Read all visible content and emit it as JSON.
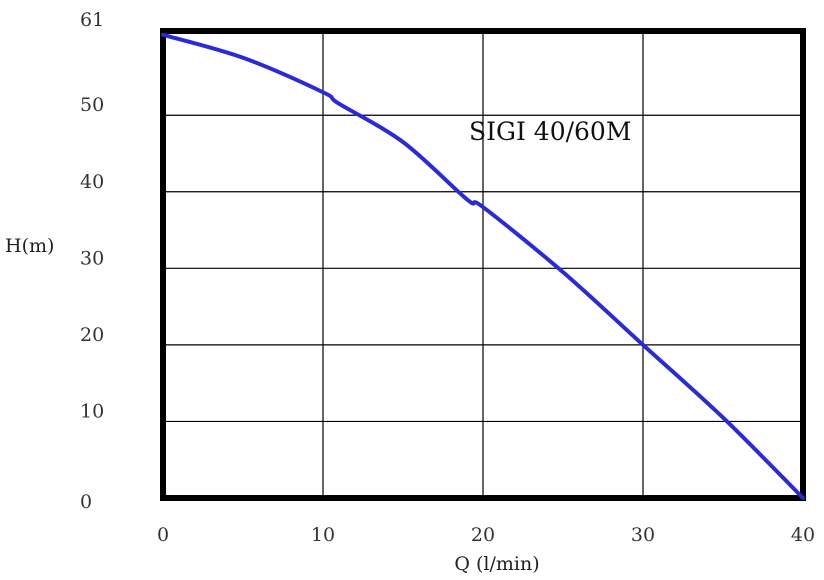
{
  "chart_data": {
    "type": "line",
    "title": "SIGI 40/60M",
    "xlabel": "Q (l/min)",
    "ylabel": "H(m)",
    "xlim": [
      0,
      40
    ],
    "ylim": [
      0,
      61
    ],
    "x_ticks": [
      0,
      10,
      20,
      30,
      40
    ],
    "y_ticks": [
      0,
      10,
      20,
      30,
      40,
      50,
      61
    ],
    "y_tick_labels": [
      "0",
      "10",
      "20",
      "30",
      "40",
      "50",
      "61"
    ],
    "grid": true,
    "series": [
      {
        "color": "#2b2bd6",
        "x": [
          0,
          5,
          10,
          11,
          15,
          19,
          20,
          25,
          30,
          35,
          40
        ],
        "y": [
          60.5,
          57.5,
          53,
          51.5,
          46.5,
          39,
          38,
          29.5,
          20,
          10.5,
          0
        ]
      }
    ]
  }
}
